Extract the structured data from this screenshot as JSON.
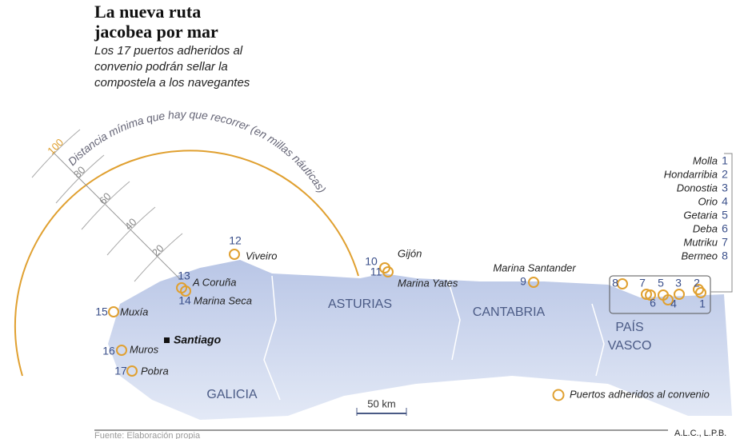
{
  "header": {
    "title": "La nueva ruta jacobea por mar",
    "subtitle": "Los 17 puertos adheridos al convenio podrán sellar la compostela a los navegantes"
  },
  "distance_scale": {
    "label": "Distancia mínima que hay que recorrer (en millas náuticas)",
    "ticks": [
      100,
      80,
      60,
      40,
      20
    ]
  },
  "ports": [
    {
      "number": 1,
      "name": "Molla"
    },
    {
      "number": 2,
      "name": "Hondarribia"
    },
    {
      "number": 3,
      "name": "Donostia"
    },
    {
      "number": 4,
      "name": "Orio"
    },
    {
      "number": 5,
      "name": "Getaria"
    },
    {
      "number": 6,
      "name": "Deba"
    },
    {
      "number": 7,
      "name": "Mutriku"
    },
    {
      "number": 8,
      "name": "Bermeo"
    },
    {
      "number": 9,
      "name": "Marina Santander"
    },
    {
      "number": 10,
      "name": "Gijón"
    },
    {
      "number": 11,
      "name": "Marina Yates"
    },
    {
      "number": 12,
      "name": "Viveiro"
    },
    {
      "number": 13,
      "name": "A Coruña"
    },
    {
      "number": 14,
      "name": "Marina Seca"
    },
    {
      "number": 15,
      "name": "Muxía"
    },
    {
      "number": 16,
      "name": "Muros"
    },
    {
      "number": 17,
      "name": "Pobra"
    }
  ],
  "city": "Santiago",
  "regions": [
    "GALICIA",
    "ASTURIAS",
    "CANTABRIA",
    "PAÍS VASCO"
  ],
  "scale_bar": "50 km",
  "legend": "Puertos adheridos al convenio",
  "footer": {
    "source": "Fuente: Elaboración propia",
    "credit": "A.L.C., L.P.B."
  }
}
